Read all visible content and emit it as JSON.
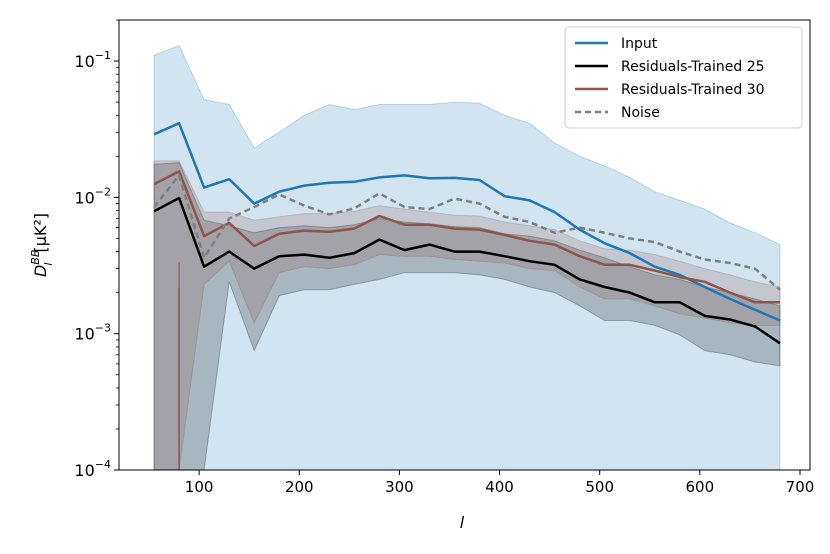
{
  "chart_data": {
    "type": "line",
    "title": "",
    "xlabel": "l",
    "ylabel_main": "D",
    "ylabel_sup": "BB",
    "ylabel_sub": "l",
    "ylabel_unit": "[μK²]",
    "xlim": [
      20,
      710
    ],
    "ylim": [
      0.0001,
      0.2
    ],
    "yscale": "log",
    "x_ticks": [
      100,
      200,
      300,
      400,
      500,
      600,
      700
    ],
    "x_tick_labels": [
      "100",
      "200",
      "300",
      "400",
      "500",
      "600",
      "700"
    ],
    "y_ticks": [
      0.0001,
      0.001,
      0.01,
      0.1
    ],
    "y_tick_base": "10",
    "y_tick_exps": [
      "−4",
      "−3",
      "−2",
      "−1"
    ],
    "legend": [
      "Input",
      "Residuals-Trained 25",
      "Residuals-Trained 30",
      "Noise"
    ],
    "x": [
      55,
      80,
      105,
      130,
      155,
      180,
      205,
      230,
      255,
      280,
      305,
      330,
      355,
      380,
      405,
      430,
      455,
      480,
      505,
      530,
      555,
      580,
      605,
      630,
      655,
      680
    ],
    "series": [
      {
        "name": "Input",
        "color": "#1f77b4",
        "dash": "",
        "band_opacity": 0.2,
        "values": [
          0.029,
          0.035,
          0.0118,
          0.0136,
          0.009,
          0.011,
          0.0122,
          0.0128,
          0.013,
          0.014,
          0.0145,
          0.0138,
          0.0139,
          0.0134,
          0.0102,
          0.0095,
          0.0078,
          0.0058,
          0.0046,
          0.0039,
          0.0031,
          0.0027,
          0.0022,
          0.0018,
          0.0015,
          0.00125
        ],
        "upper": [
          0.11,
          0.13,
          0.052,
          0.048,
          0.023,
          0.03,
          0.04,
          0.048,
          0.044,
          0.048,
          0.048,
          0.048,
          0.05,
          0.049,
          0.04,
          0.035,
          0.025,
          0.02,
          0.017,
          0.014,
          0.011,
          0.0095,
          0.0082,
          0.0065,
          0.0055,
          0.0045
        ],
        "lower": [
          0.0001,
          0.0001,
          0.0001,
          0.0001,
          0.0001,
          0.0001,
          0.0001,
          0.0001,
          0.0001,
          0.0001,
          0.0001,
          0.0001,
          0.0001,
          0.0001,
          0.0001,
          0.0001,
          0.0001,
          0.0001,
          0.0001,
          0.0001,
          0.0001,
          0.0001,
          0.0001,
          0.0001,
          0.0001,
          0.0001
        ]
      },
      {
        "name": "Residuals-Trained 25",
        "color": "#000000",
        "dash": "",
        "band_opacity": 0.2,
        "values": [
          0.0079,
          0.0099,
          0.0031,
          0.004,
          0.003,
          0.0037,
          0.0038,
          0.0036,
          0.0039,
          0.0049,
          0.0041,
          0.0045,
          0.004,
          0.004,
          0.0037,
          0.0034,
          0.0032,
          0.0025,
          0.0022,
          0.002,
          0.0017,
          0.0017,
          0.00135,
          0.00127,
          0.00113,
          0.00085
        ],
        "upper": [
          0.0175,
          0.018,
          0.0068,
          0.0062,
          0.0055,
          0.006,
          0.0062,
          0.006,
          0.0063,
          0.007,
          0.0066,
          0.0064,
          0.0061,
          0.006,
          0.0054,
          0.0052,
          0.0048,
          0.0041,
          0.0036,
          0.0031,
          0.0027,
          0.0025,
          0.0022,
          0.002,
          0.0018,
          0.0016
        ],
        "lower": [
          0.0001,
          0.0001,
          0.0001,
          0.0024,
          0.00075,
          0.0019,
          0.0021,
          0.0021,
          0.0023,
          0.0025,
          0.0028,
          0.0028,
          0.0028,
          0.0027,
          0.0025,
          0.0022,
          0.002,
          0.0016,
          0.00125,
          0.00125,
          0.00115,
          0.00098,
          0.00075,
          0.0007,
          0.00062,
          0.00058
        ]
      },
      {
        "name": "Residuals-Trained 30",
        "color": "#8c564b",
        "dash": "",
        "band_opacity": 0.2,
        "values": [
          0.0125,
          0.0155,
          0.0052,
          0.0065,
          0.0044,
          0.0054,
          0.0057,
          0.0056,
          0.0059,
          0.0073,
          0.0063,
          0.0063,
          0.0059,
          0.0058,
          0.0053,
          0.0048,
          0.0045,
          0.0037,
          0.0032,
          0.0032,
          0.0029,
          0.0026,
          0.0024,
          0.002,
          0.0017,
          0.0017
        ],
        "upper": [
          0.0185,
          0.0185,
          0.0078,
          0.0078,
          0.0068,
          0.0072,
          0.0076,
          0.0076,
          0.0079,
          0.0087,
          0.0082,
          0.0078,
          0.0074,
          0.0073,
          0.0066,
          0.0062,
          0.0058,
          0.0048,
          0.0042,
          0.0041,
          0.0038,
          0.0034,
          0.003,
          0.0027,
          0.0024,
          0.0022
        ],
        "lower": [
          0.0001,
          0.0001,
          0.0023,
          0.0034,
          0.0012,
          0.0028,
          0.0031,
          0.003,
          0.0032,
          0.0038,
          0.0037,
          0.0037,
          0.0035,
          0.0034,
          0.0033,
          0.003,
          0.0029,
          0.0022,
          0.0018,
          0.0018,
          0.0016,
          0.0014,
          0.0013,
          0.0012,
          0.00115,
          0.00115
        ]
      },
      {
        "name": "Noise",
        "color": "#808080",
        "dash": "6,4",
        "band_opacity": 0,
        "values": [
          0.0085,
          0.0145,
          0.0036,
          0.007,
          0.0085,
          0.0105,
          0.0087,
          0.0075,
          0.0083,
          0.0107,
          0.0085,
          0.0082,
          0.0098,
          0.009,
          0.0072,
          0.0066,
          0.0055,
          0.006,
          0.0055,
          0.005,
          0.0047,
          0.004,
          0.0035,
          0.0033,
          0.003,
          0.0021
        ],
        "upper": [],
        "lower": []
      }
    ],
    "spikes": [
      {
        "x": 80,
        "top": 0.00335,
        "color": "#8c564b"
      },
      {
        "x": 80,
        "top": 0.00215,
        "color": "#8c564b"
      }
    ]
  }
}
